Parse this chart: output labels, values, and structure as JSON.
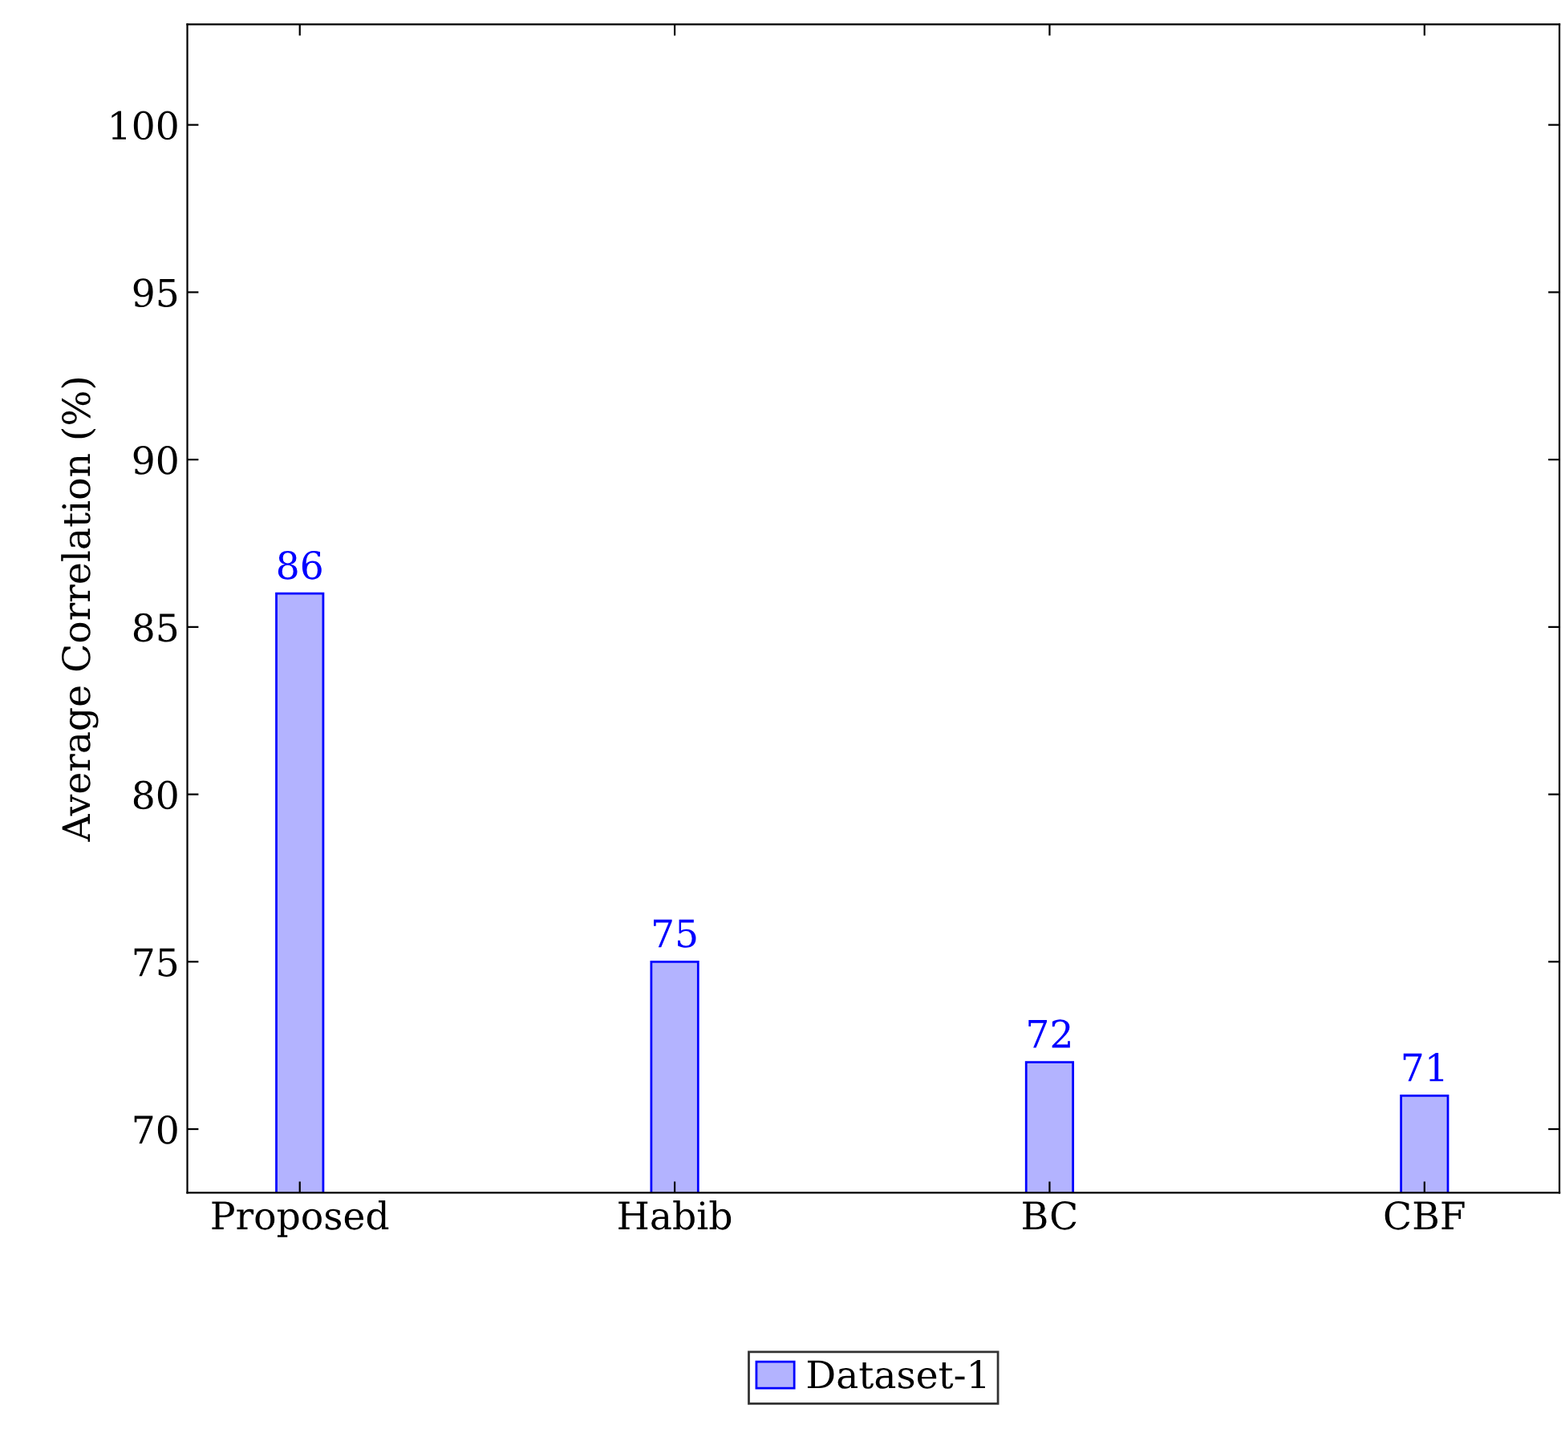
{
  "chart_data": {
    "type": "bar",
    "ylabel": "Average Correlation (%)",
    "categories": [
      "Proposed",
      "Habib",
      "BC",
      "CBF"
    ],
    "series": [
      {
        "name": "Dataset-1",
        "color": "#b3b3ff",
        "values": [
          86,
          75,
          72,
          71
        ]
      }
    ],
    "ylim": [
      68.1,
      103
    ],
    "yticks": [
      70,
      75,
      80,
      85,
      90,
      95,
      100
    ],
    "data_labels": true,
    "legend": "bottom",
    "grid": false
  }
}
